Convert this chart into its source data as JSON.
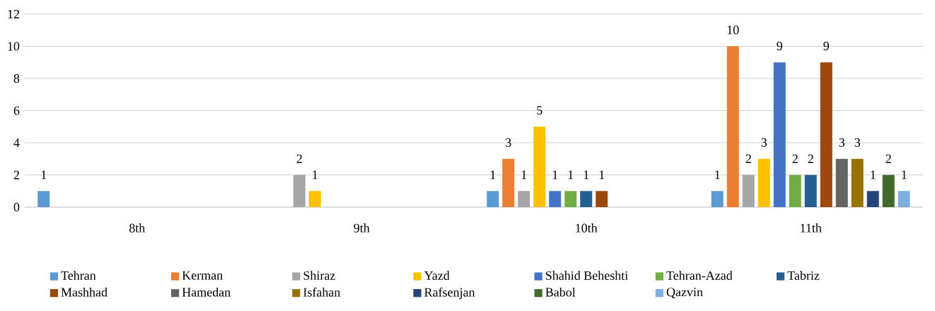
{
  "chart_data": {
    "type": "bar",
    "categories": [
      "8th",
      "9th",
      "10th",
      "11th"
    ],
    "series": [
      {
        "name": "Tehran",
        "color": "#5b9bd5",
        "values": [
          1,
          null,
          1,
          1
        ]
      },
      {
        "name": "Kerman",
        "color": "#ed7d31",
        "values": [
          null,
          null,
          3,
          10
        ]
      },
      {
        "name": "Shiraz",
        "color": "#a5a5a5",
        "values": [
          null,
          2,
          1,
          2
        ]
      },
      {
        "name": "Yazd",
        "color": "#ffc000",
        "values": [
          null,
          1,
          5,
          3
        ]
      },
      {
        "name": "Shahid Beheshti",
        "color": "#4472c4",
        "values": [
          null,
          null,
          1,
          9
        ]
      },
      {
        "name": "Tehran-Azad",
        "color": "#70ad47",
        "values": [
          null,
          null,
          1,
          2
        ]
      },
      {
        "name": "Tabriz",
        "color": "#255e91",
        "values": [
          null,
          null,
          1,
          2
        ]
      },
      {
        "name": "Mashhad",
        "color": "#9e480e",
        "values": [
          null,
          null,
          1,
          9
        ]
      },
      {
        "name": "Hamedan",
        "color": "#636363",
        "values": [
          null,
          null,
          null,
          3
        ]
      },
      {
        "name": "Isfahan",
        "color": "#997300",
        "values": [
          null,
          null,
          null,
          3
        ]
      },
      {
        "name": "Rafsenjan",
        "color": "#264478",
        "values": [
          null,
          null,
          null,
          1
        ]
      },
      {
        "name": "Babol",
        "color": "#43682b",
        "values": [
          null,
          null,
          null,
          2
        ]
      },
      {
        "name": "Qazvin",
        "color": "#7cafdd",
        "values": [
          null,
          null,
          null,
          1
        ]
      }
    ],
    "ylim": [
      0,
      12
    ],
    "yticks": [
      0,
      2,
      4,
      6,
      8,
      10,
      12
    ],
    "grid": "y",
    "legend": "bottom",
    "data_labels": true
  }
}
